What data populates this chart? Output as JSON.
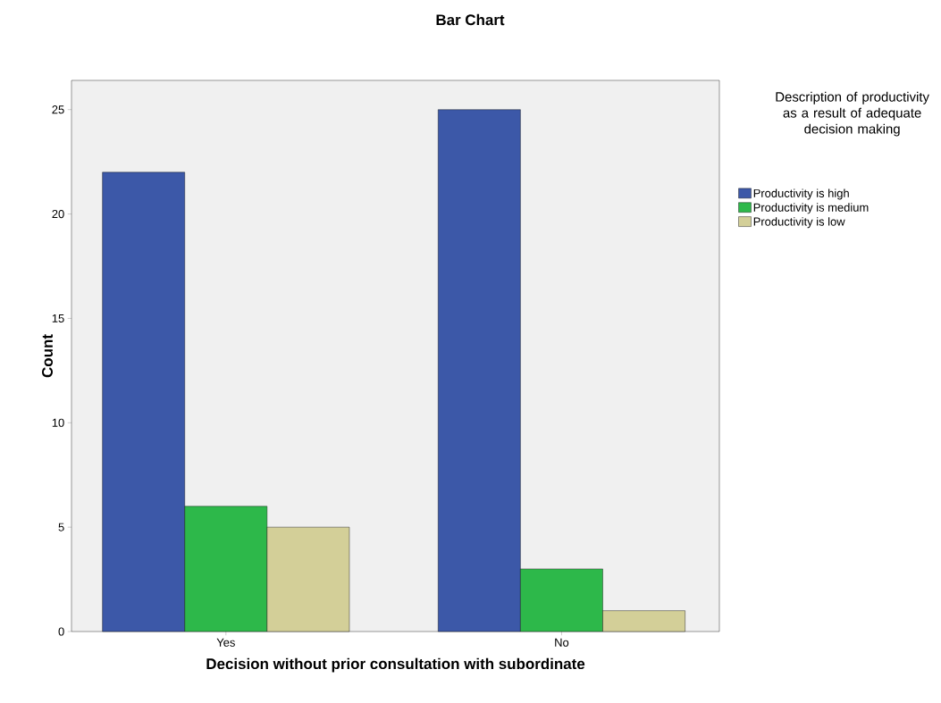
{
  "chart_data": {
    "type": "bar",
    "title": "Bar Chart",
    "xlabel": "Decision without prior consultation with subordinate",
    "ylabel": "Count",
    "legend_title": "Description of productivity as a result of adequate decision making",
    "categories": [
      "Yes",
      "No"
    ],
    "series": [
      {
        "name": "Productivity is high",
        "color": "#3c58a8",
        "values": [
          22,
          25
        ]
      },
      {
        "name": "Productivity is medium",
        "color": "#2db84a",
        "values": [
          6,
          3
        ]
      },
      {
        "name": "Productivity is low",
        "color": "#d3cf98",
        "values": [
          5,
          1
        ]
      }
    ],
    "ylim": [
      0,
      26.4
    ],
    "yticks": [
      0,
      5,
      10,
      15,
      20,
      25
    ],
    "legend": "right"
  }
}
